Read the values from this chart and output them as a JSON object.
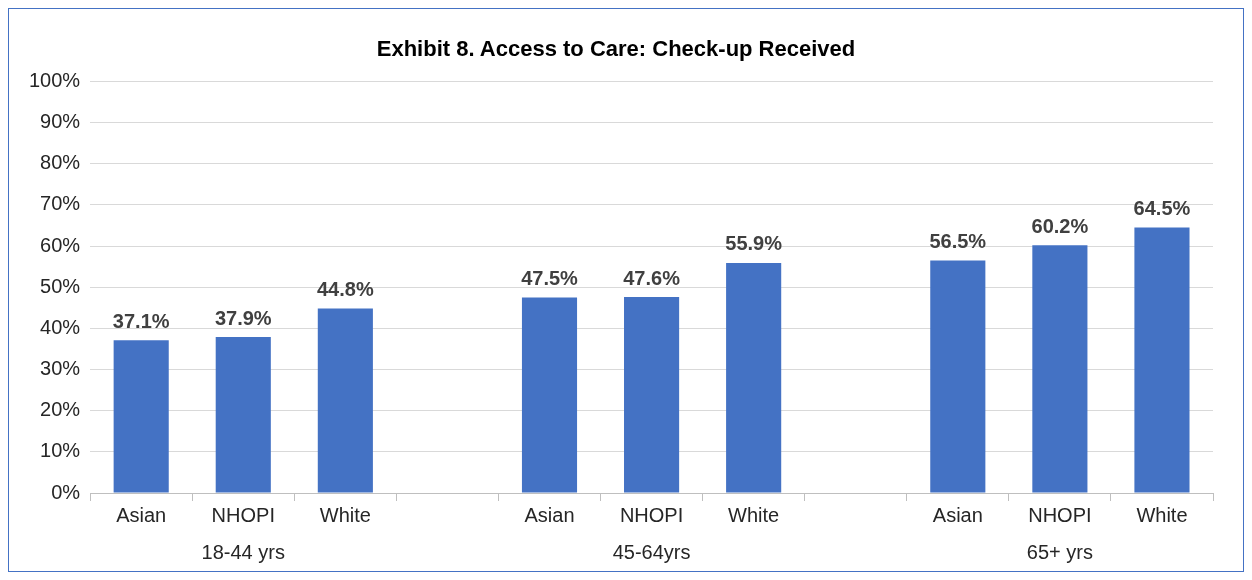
{
  "chart_data": {
    "type": "bar",
    "title": "Exhibit 8. Access to Care: Check-up Received",
    "categories": [
      "Asian",
      "NHOPI",
      "White",
      null,
      "Asian",
      "NHOPI",
      "White",
      null,
      "Asian",
      "NHOPI",
      "White"
    ],
    "values": [
      37.1,
      37.9,
      44.8,
      null,
      47.5,
      47.6,
      55.9,
      null,
      56.5,
      60.2,
      64.5
    ],
    "value_labels": [
      "37.1%",
      "37.9%",
      "44.8%",
      null,
      "47.5%",
      "47.6%",
      "55.9%",
      null,
      "56.5%",
      "60.2%",
      "64.5%"
    ],
    "color": "#4472c4",
    "ylim": [
      0,
      100
    ],
    "yticks": [
      {
        "value": 0,
        "label": "0%"
      },
      {
        "value": 10,
        "label": "10%"
      },
      {
        "value": 20,
        "label": "20%"
      },
      {
        "value": 30,
        "label": "30%"
      },
      {
        "value": 40,
        "label": "40%"
      },
      {
        "value": 50,
        "label": "50%"
      },
      {
        "value": 60,
        "label": "60%"
      },
      {
        "value": 70,
        "label": "70%"
      },
      {
        "value": 80,
        "label": "80%"
      },
      {
        "value": 90,
        "label": "90%"
      },
      {
        "value": 100,
        "label": "100%"
      }
    ],
    "annotations": [
      "18-44 yrs",
      "45-64yrs",
      "65+ yrs"
    ],
    "grid": "y",
    "legend": false
  }
}
